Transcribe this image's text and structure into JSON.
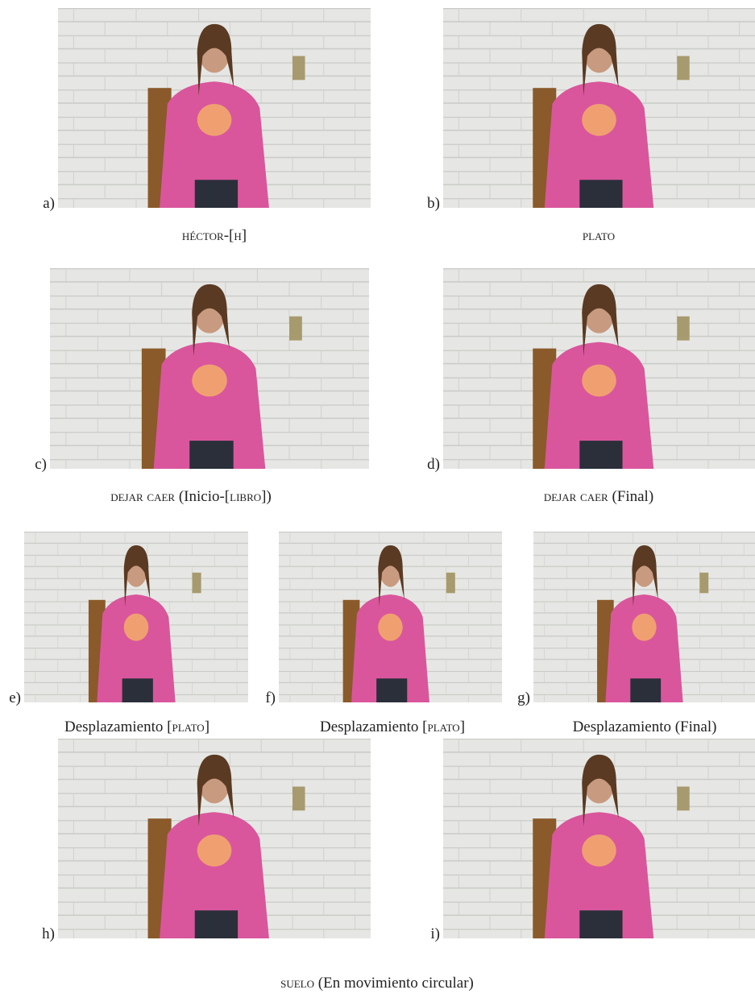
{
  "panels": [
    {
      "label": "a)",
      "caption": [
        {
          "text": "héctor-[h]",
          "small_caps": true
        }
      ]
    },
    {
      "label": "b)",
      "caption": [
        {
          "text": "plato",
          "small_caps": true
        }
      ]
    },
    {
      "label": "c)",
      "caption": [
        {
          "text": "dejar caer",
          "small_caps": true
        },
        {
          "text": " (Inicio-["
        },
        {
          "text": "libro",
          "small_caps": true
        },
        {
          "text": "])"
        }
      ]
    },
    {
      "label": "d)",
      "caption": [
        {
          "text": "dejar caer",
          "small_caps": true
        },
        {
          "text": " (Final)"
        }
      ]
    },
    {
      "label": "e)",
      "caption": [
        {
          "text": "Desplazamiento ["
        },
        {
          "text": "plato",
          "small_caps": true
        },
        {
          "text": "]"
        }
      ]
    },
    {
      "label": "f)",
      "caption": [
        {
          "text": "Desplazamiento ["
        },
        {
          "text": "plato",
          "small_caps": true
        },
        {
          "text": "]"
        }
      ]
    },
    {
      "label": "g)",
      "caption": [
        {
          "text": "Desplazamiento (Final)"
        }
      ]
    },
    {
      "label": "h)"
    },
    {
      "label": "i)"
    }
  ],
  "final_caption": [
    {
      "text": "suelo",
      "small_caps": true
    },
    {
      "text": " (En movimiento circular)"
    }
  ]
}
